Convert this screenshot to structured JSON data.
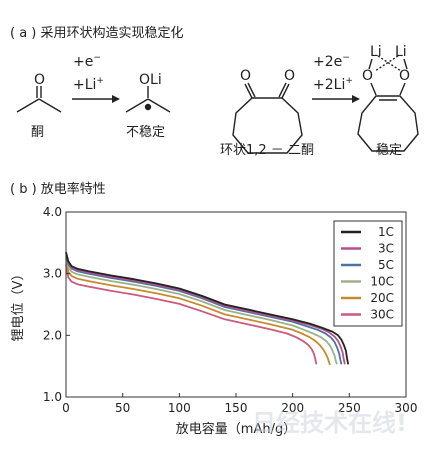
{
  "panel_a": {
    "title": "( a ) 采用环状构造实现稳定化",
    "labels": {
      "oxygen": "O",
      "oli": "OLi",
      "li": "Li",
      "ketone": "酮",
      "unstable": "不稳定",
      "cyclic_dione": "环状1,2 － 二酮",
      "stable": "稳定"
    },
    "reaction1": {
      "line1": "+e",
      "line1_sup": "−",
      "line2": "+Li",
      "line2_sup": "+"
    },
    "reaction2": {
      "line1": "+2e",
      "line1_sup": "−",
      "line2": "+2Li",
      "line2_sup": "+"
    }
  },
  "panel_b": {
    "title": "( b ) 放电率特性"
  },
  "watermark": "日经技术在线!",
  "chart_data": {
    "type": "line",
    "title": "",
    "xlabel": "放电容量（mAh/g）",
    "ylabel": "锂电位（V）",
    "xlim": [
      0,
      300
    ],
    "ylim": [
      1.0,
      4.0
    ],
    "xticks": [
      0,
      50,
      100,
      150,
      200,
      250,
      300
    ],
    "yticks": [
      1.0,
      2.0,
      3.0,
      4.0
    ],
    "ytick_labels": [
      "1.0",
      "2.0",
      "3.0",
      "4.0"
    ],
    "grid": false,
    "legend_position": "top-right",
    "series": [
      {
        "name": "1C",
        "color": "#222222",
        "x": [
          0,
          2,
          5,
          10,
          20,
          40,
          60,
          80,
          100,
          120,
          140,
          160,
          180,
          200,
          215,
          225,
          235,
          240,
          243,
          245,
          247,
          248,
          249
        ],
        "y": [
          3.35,
          3.2,
          3.12,
          3.08,
          3.04,
          2.97,
          2.91,
          2.84,
          2.76,
          2.64,
          2.5,
          2.42,
          2.34,
          2.26,
          2.19,
          2.13,
          2.06,
          2.0,
          1.93,
          1.85,
          1.75,
          1.62,
          1.53
        ]
      },
      {
        "name": "3C",
        "color": "#b8508a",
        "x": [
          0,
          2,
          5,
          10,
          20,
          40,
          60,
          80,
          100,
          120,
          140,
          160,
          180,
          200,
          215,
          225,
          232,
          237,
          240,
          242,
          244,
          245,
          246
        ],
        "y": [
          3.35,
          3.18,
          3.1,
          3.06,
          3.02,
          2.95,
          2.89,
          2.82,
          2.74,
          2.62,
          2.48,
          2.4,
          2.32,
          2.24,
          2.17,
          2.11,
          2.05,
          1.98,
          1.91,
          1.83,
          1.73,
          1.62,
          1.53
        ]
      },
      {
        "name": "5C",
        "color": "#4a73a8",
        "x": [
          0,
          2,
          5,
          10,
          20,
          40,
          60,
          80,
          100,
          120,
          140,
          160,
          180,
          200,
          212,
          222,
          229,
          234,
          237,
          239,
          241,
          242,
          243
        ],
        "y": [
          3.33,
          3.15,
          3.08,
          3.04,
          3.0,
          2.93,
          2.87,
          2.8,
          2.72,
          2.6,
          2.46,
          2.38,
          2.3,
          2.22,
          2.15,
          2.09,
          2.03,
          1.96,
          1.89,
          1.81,
          1.71,
          1.61,
          1.53
        ]
      },
      {
        "name": "10C",
        "color": "#9db08a",
        "x": [
          0,
          2,
          5,
          10,
          20,
          40,
          60,
          80,
          100,
          120,
          140,
          160,
          180,
          200,
          210,
          218,
          225,
          230,
          233,
          235,
          237,
          238,
          239
        ],
        "y": [
          3.3,
          3.1,
          3.03,
          2.99,
          2.95,
          2.88,
          2.82,
          2.75,
          2.67,
          2.55,
          2.41,
          2.33,
          2.25,
          2.16,
          2.09,
          2.03,
          1.97,
          1.9,
          1.83,
          1.76,
          1.67,
          1.59,
          1.53
        ]
      },
      {
        "name": "20C",
        "color": "#c88a2e",
        "x": [
          0,
          2,
          5,
          10,
          20,
          40,
          60,
          80,
          100,
          120,
          140,
          160,
          180,
          200,
          208,
          215,
          220,
          224,
          227,
          229,
          231,
          232,
          233
        ],
        "y": [
          3.25,
          3.03,
          2.96,
          2.92,
          2.88,
          2.81,
          2.75,
          2.68,
          2.6,
          2.48,
          2.34,
          2.26,
          2.18,
          2.09,
          2.03,
          1.97,
          1.91,
          1.84,
          1.77,
          1.71,
          1.63,
          1.57,
          1.52
        ]
      },
      {
        "name": "30C",
        "color": "#cc5a7e",
        "x": [
          0,
          2,
          5,
          10,
          20,
          40,
          60,
          80,
          100,
          120,
          140,
          160,
          180,
          195,
          203,
          209,
          214,
          217,
          219,
          220,
          221
        ],
        "y": [
          3.15,
          2.94,
          2.87,
          2.83,
          2.79,
          2.72,
          2.66,
          2.59,
          2.51,
          2.39,
          2.26,
          2.18,
          2.1,
          2.03,
          1.97,
          1.91,
          1.84,
          1.77,
          1.69,
          1.61,
          1.53
        ]
      }
    ]
  }
}
